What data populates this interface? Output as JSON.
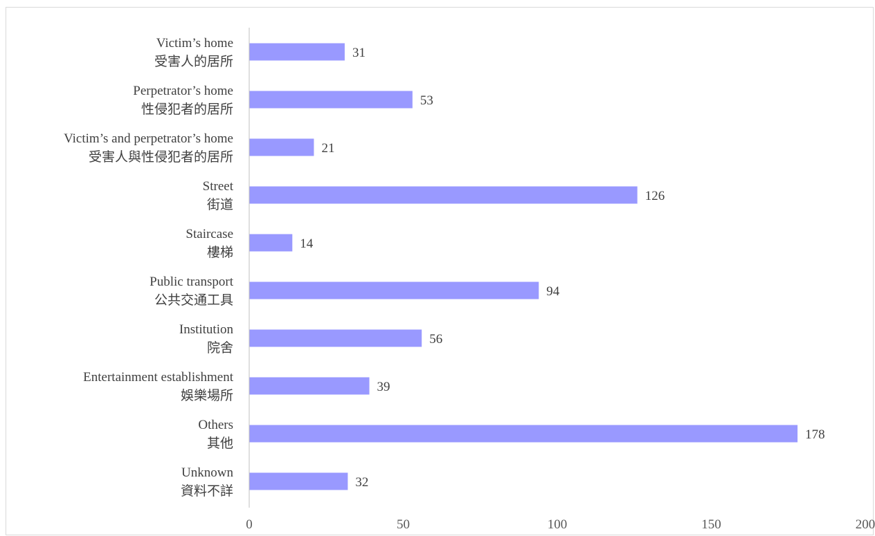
{
  "chart_data": {
    "type": "bar",
    "orientation": "horizontal",
    "categories": [
      [
        "Victim’s home",
        "受害人的居所"
      ],
      [
        "Perpetrator’s home",
        "性侵犯者的居所"
      ],
      [
        "Victim’s and perpetrator’s home",
        "受害人與性侵犯者的居所"
      ],
      [
        "Street",
        "街道"
      ],
      [
        "Staircase",
        "樓梯"
      ],
      [
        "Public transport",
        "公共交通工具"
      ],
      [
        "Institution",
        "院舍"
      ],
      [
        "Entertainment establishment",
        "娛樂場所"
      ],
      [
        "Others",
        "其他"
      ],
      [
        "Unknown",
        "資料不詳"
      ]
    ],
    "values": [
      31,
      53,
      21,
      126,
      14,
      94,
      56,
      39,
      178,
      32
    ],
    "xlim": [
      0,
      200
    ],
    "xticks": [
      0,
      50,
      100,
      150,
      200
    ],
    "grid": false,
    "title": "",
    "xlabel": "",
    "ylabel": "",
    "colors": {
      "bar": "#9999ff",
      "axis": "#bfbfbf",
      "text": "#404040"
    }
  }
}
